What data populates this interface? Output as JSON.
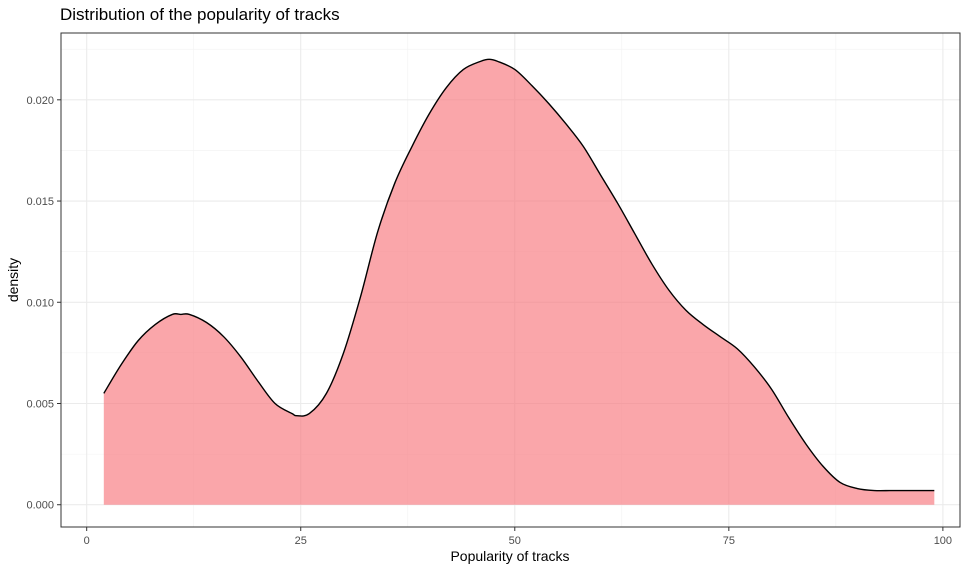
{
  "chart_data": {
    "type": "area",
    "title": "Distribution of the popularity of tracks",
    "xlabel": "Popularity of tracks",
    "ylabel": "density",
    "xlim": [
      -3,
      102
    ],
    "ylim": [
      -0.0011,
      0.0233
    ],
    "x_ticks": [
      0,
      25,
      50,
      75,
      100
    ],
    "x_tick_labels": [
      "0",
      "25",
      "50",
      "75",
      "100"
    ],
    "y_ticks": [
      0.0,
      0.005,
      0.01,
      0.015,
      0.02
    ],
    "y_tick_labels": [
      "0.000",
      "0.005",
      "0.010",
      "0.015",
      "0.020"
    ],
    "grid": true,
    "fill_color": "#F8767D",
    "fill_opacity": 0.65,
    "line_color": "#000000",
    "x": [
      2,
      4,
      6,
      8,
      10,
      11,
      12,
      14,
      16,
      18,
      20,
      22,
      24,
      24.5,
      26,
      28,
      30,
      32,
      34,
      36,
      38,
      40,
      42,
      44,
      46,
      47,
      48,
      50,
      52,
      54,
      56,
      58,
      60,
      62,
      64,
      66,
      68,
      70,
      72,
      74,
      76,
      78,
      80,
      82,
      84,
      86,
      88,
      90,
      92,
      94,
      96,
      98,
      99
    ],
    "y": [
      0.0055,
      0.0069,
      0.0081,
      0.0089,
      0.0094,
      0.0094,
      0.0094,
      0.009,
      0.0083,
      0.0073,
      0.0061,
      0.005,
      0.0045,
      0.0044,
      0.0045,
      0.0055,
      0.0075,
      0.0103,
      0.0135,
      0.0159,
      0.0177,
      0.0193,
      0.0206,
      0.0215,
      0.0219,
      0.022,
      0.0219,
      0.0215,
      0.0207,
      0.0198,
      0.0188,
      0.0177,
      0.0163,
      0.0149,
      0.0134,
      0.0119,
      0.0106,
      0.0096,
      0.0089,
      0.0083,
      0.0077,
      0.0068,
      0.0057,
      0.0043,
      0.003,
      0.0019,
      0.0011,
      0.0008,
      0.0007,
      0.0007,
      0.0007,
      0.0007,
      0.0007
    ]
  }
}
